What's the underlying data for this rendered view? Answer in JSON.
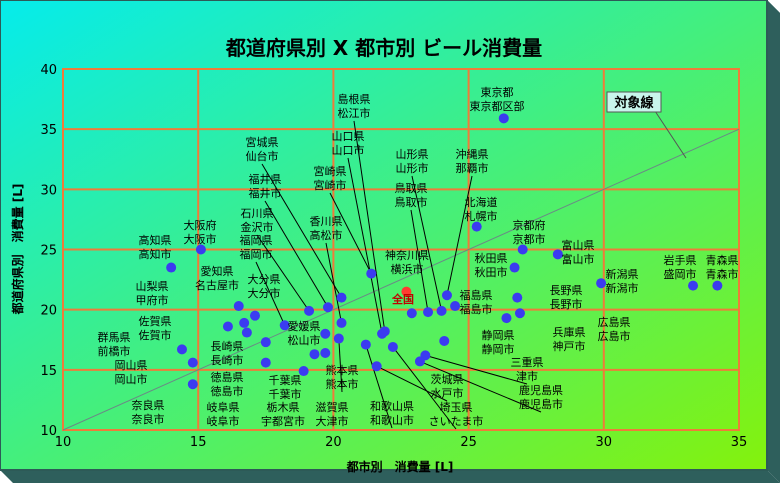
{
  "chart_data": {
    "type": "scatter",
    "title": "都道府県別 X 都市別 ビール消費量",
    "xlabel": "都市別　消費量 [L]",
    "ylabel": "都道府県別　消費量 [L]",
    "xlim": [
      10,
      35
    ],
    "ylim": [
      10,
      40
    ],
    "xticks": [
      10,
      15,
      20,
      25,
      30,
      35
    ],
    "yticks": [
      10,
      15,
      20,
      25,
      30,
      35,
      40
    ],
    "grid": true,
    "reference_line_label": "対象線",
    "colors": {
      "point": "#3b3bf0",
      "national": "#ff3b30",
      "grid": "#ef7b3a",
      "bg_start": "#06f0e0",
      "bg_end": "#8cf50a"
    },
    "points": [
      {
        "label": "東京都\n東京都区部",
        "x": 26.3,
        "y": 35.9
      },
      {
        "label": "島根県\n松江市",
        "x": 21.9,
        "y": 18.2
      },
      {
        "label": "山口県\n山口市",
        "x": 21.8,
        "y": 18.0
      },
      {
        "label": "宮崎県\n宮崎市",
        "x": 21.4,
        "y": 23.0
      },
      {
        "label": "宮城県\n仙台市",
        "x": 20.3,
        "y": 21.0
      },
      {
        "label": "福井県\n福井市",
        "x": 19.8,
        "y": 20.2
      },
      {
        "label": "石川県\n金沢市",
        "x": 19.1,
        "y": 19.9
      },
      {
        "label": "福岡県\n福岡市",
        "x": 18.2,
        "y": 18.7
      },
      {
        "label": "香川県\n高松市",
        "x": 20.3,
        "y": 18.9
      },
      {
        "label": "山形県\n山形市",
        "x": 24.0,
        "y": 19.9
      },
      {
        "label": "沖縄県\n那覇市",
        "x": 24.2,
        "y": 21.2
      },
      {
        "label": "鳥取県\n鳥取市",
        "x": 23.5,
        "y": 19.8
      },
      {
        "label": "北海道\n札幌市",
        "x": 25.3,
        "y": 26.9
      },
      {
        "label": "神奈川県\n横浜市",
        "x": 22.9,
        "y": 19.7
      },
      {
        "label": "京都府\n京都市",
        "x": 27.0,
        "y": 25.0
      },
      {
        "label": "富山県\n富山市",
        "x": 28.3,
        "y": 24.6
      },
      {
        "label": "秋田県\n秋田市",
        "x": 26.7,
        "y": 23.5
      },
      {
        "label": "福島県\n福島市",
        "x": 24.5,
        "y": 20.3
      },
      {
        "label": "長野県\n長野市",
        "x": 26.8,
        "y": 21.0
      },
      {
        "label": "新潟県\n新潟市",
        "x": 29.9,
        "y": 22.2
      },
      {
        "label": "岩手県\n盛岡市",
        "x": 33.3,
        "y": 22.0
      },
      {
        "label": "青森県\n青森市",
        "x": 34.2,
        "y": 22.0
      },
      {
        "label": "兵庫県\n神戸市",
        "x": 26.9,
        "y": 19.7
      },
      {
        "label": "広島県\n広島市",
        "x": 26.4,
        "y": 19.3
      },
      {
        "label": "高知県\n高知市",
        "x": 14.0,
        "y": 23.5
      },
      {
        "label": "大阪府\n大阪市",
        "x": 15.1,
        "y": 25.0
      },
      {
        "label": "愛知県\n名古屋市",
        "x": 16.5,
        "y": 20.3
      },
      {
        "label": "大分県\n大分市",
        "x": 17.1,
        "y": 19.5
      },
      {
        "label": "山梨県\n甲府市",
        "x": 16.7,
        "y": 18.9
      },
      {
        "label": "佐賀県\n佐賀市",
        "x": 16.1,
        "y": 18.6
      },
      {
        "label": "長崎県\n長崎市",
        "x": 16.8,
        "y": 18.1
      },
      {
        "label": "愛媛県\n松山市",
        "x": 19.7,
        "y": 18.0
      },
      {
        "label": "群馬県\n前橋市",
        "x": 14.4,
        "y": 16.7
      },
      {
        "label": "岡山県\n岡山市",
        "x": 14.8,
        "y": 15.6
      },
      {
        "label": "奈良県\n奈良市",
        "x": 14.8,
        "y": 13.8
      },
      {
        "label": "徳島県\n徳島市",
        "x": 17.5,
        "y": 17.3
      },
      {
        "label": "千葉県\n千葉市",
        "x": 19.3,
        "y": 16.3
      },
      {
        "label": "熊本県\n熊本市",
        "x": 20.2,
        "y": 17.6
      },
      {
        "label": "静岡県\n静岡市",
        "x": 24.1,
        "y": 17.4
      },
      {
        "label": "岐阜県\n岐阜市",
        "x": 17.5,
        "y": 15.6
      },
      {
        "label": "栃木県\n宇都宮市",
        "x": 18.9,
        "y": 14.9
      },
      {
        "label": "滋賀県\n大津市",
        "x": 19.7,
        "y": 16.4
      },
      {
        "label": "和歌山県\n和歌山市",
        "x": 21.2,
        "y": 17.1
      },
      {
        "label": "茨城県\n水戸市",
        "x": 21.6,
        "y": 15.3
      },
      {
        "label": "埼玉県\nさいたま市",
        "x": 22.2,
        "y": 16.9
      },
      {
        "label": "三重県\n津市",
        "x": 23.4,
        "y": 16.2
      },
      {
        "label": "鹿児島県\n鹿児島市",
        "x": 23.2,
        "y": 15.7
      },
      {
        "label": "全国",
        "x": 22.7,
        "y": 21.5,
        "national": true
      }
    ]
  }
}
